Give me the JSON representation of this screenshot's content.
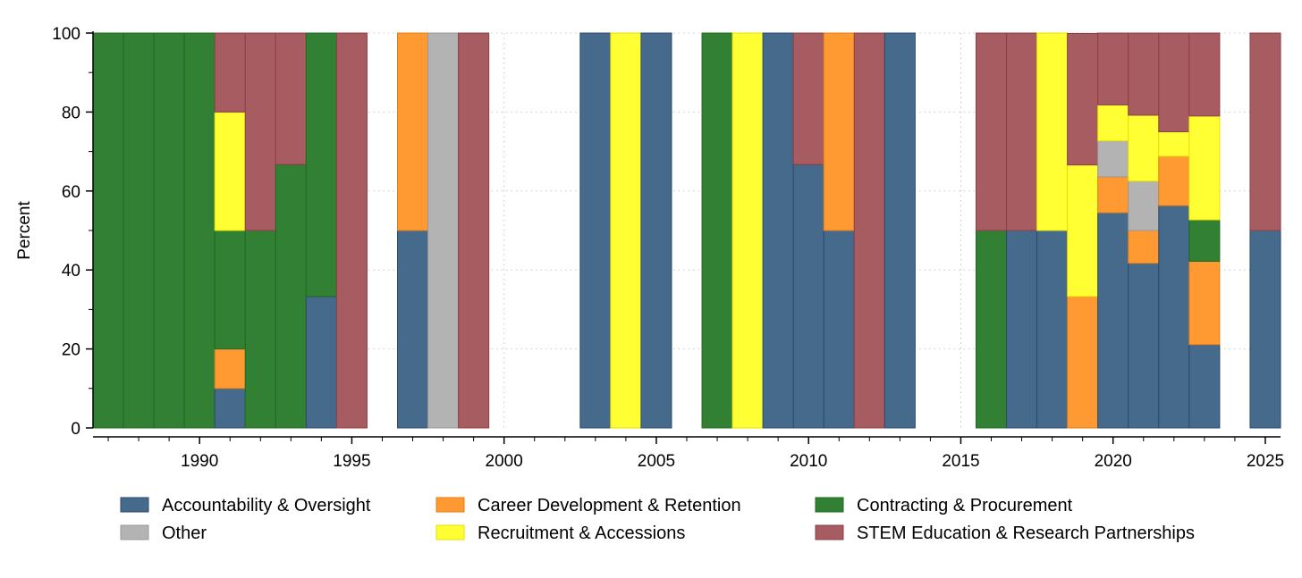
{
  "chart_data": {
    "type": "bar",
    "stacked": true,
    "title": "",
    "xlabel": "",
    "ylabel": "Percent",
    "xlim": [
      1986.5,
      2025.5
    ],
    "ylim": [
      0,
      100
    ],
    "x_ticks": [
      1990,
      1995,
      2000,
      2005,
      2010,
      2015,
      2020,
      2025
    ],
    "y_ticks": [
      0,
      20,
      40,
      60,
      80,
      100
    ],
    "grid": true,
    "legend_position": "bottom",
    "series": [
      {
        "name": "Accountability & Oversight",
        "color": "#466a8c",
        "stroke": "#2a4a6b"
      },
      {
        "name": "Career Development & Retention",
        "color": "#ff9a33",
        "stroke": "#e07f1a"
      },
      {
        "name": "Contracting & Procurement",
        "color": "#318034",
        "stroke": "#1f6a22"
      },
      {
        "name": "Other",
        "color": "#b3b3b3",
        "stroke": "#999999"
      },
      {
        "name": "Recruitment & Accessions",
        "color": "#ffff33",
        "stroke": "#e6e000"
      },
      {
        "name": "STEM Education & Research Partnerships",
        "color": "#a65c61",
        "stroke": "#8f3f45"
      }
    ],
    "stack_order": [
      "Accountability & Oversight",
      "Career Development & Retention",
      "Other",
      "Contracting & Procurement",
      "Recruitment & Accessions",
      "STEM Education & Research Partnerships"
    ],
    "bars": [
      {
        "year": 1987,
        "values": {
          "Contracting & Procurement": 100
        }
      },
      {
        "year": 1988,
        "values": {
          "Contracting & Procurement": 100
        }
      },
      {
        "year": 1989,
        "values": {
          "Contracting & Procurement": 100
        }
      },
      {
        "year": 1990,
        "values": {
          "Contracting & Procurement": 100
        }
      },
      {
        "year": 1991,
        "values": {
          "Accountability & Oversight": 10,
          "Career Development & Retention": 10,
          "Contracting & Procurement": 30,
          "Recruitment & Accessions": 30,
          "STEM Education & Research Partnerships": 20
        }
      },
      {
        "year": 1992,
        "values": {
          "Contracting & Procurement": 50,
          "STEM Education & Research Partnerships": 50
        }
      },
      {
        "year": 1993,
        "values": {
          "Contracting & Procurement": 66.7,
          "STEM Education & Research Partnerships": 33.3
        }
      },
      {
        "year": 1994,
        "values": {
          "Accountability & Oversight": 33.3,
          "Contracting & Procurement": 66.7
        }
      },
      {
        "year": 1995,
        "values": {
          "STEM Education & Research Partnerships": 100
        }
      },
      {
        "year": 1997,
        "values": {
          "Accountability & Oversight": 50,
          "Career Development & Retention": 50
        }
      },
      {
        "year": 1998,
        "values": {
          "Other": 100
        }
      },
      {
        "year": 1999,
        "values": {
          "STEM Education & Research Partnerships": 100
        }
      },
      {
        "year": 2003,
        "values": {
          "Accountability & Oversight": 100
        }
      },
      {
        "year": 2004,
        "values": {
          "Recruitment & Accessions": 100
        }
      },
      {
        "year": 2005,
        "values": {
          "Accountability & Oversight": 100
        }
      },
      {
        "year": 2007,
        "values": {
          "Contracting & Procurement": 100
        }
      },
      {
        "year": 2008,
        "values": {
          "Recruitment & Accessions": 100
        }
      },
      {
        "year": 2009,
        "values": {
          "Accountability & Oversight": 100
        }
      },
      {
        "year": 2010,
        "values": {
          "Accountability & Oversight": 66.7,
          "STEM Education & Research Partnerships": 33.3
        }
      },
      {
        "year": 2011,
        "values": {
          "Accountability & Oversight": 50,
          "Career Development & Retention": 50
        }
      },
      {
        "year": 2012,
        "values": {
          "STEM Education & Research Partnerships": 100
        }
      },
      {
        "year": 2013,
        "values": {
          "Accountability & Oversight": 100
        }
      },
      {
        "year": 2016,
        "values": {
          "Contracting & Procurement": 50,
          "STEM Education & Research Partnerships": 50
        }
      },
      {
        "year": 2017,
        "values": {
          "Accountability & Oversight": 50,
          "STEM Education & Research Partnerships": 50
        }
      },
      {
        "year": 2018,
        "values": {
          "Accountability & Oversight": 50,
          "Recruitment & Accessions": 50
        }
      },
      {
        "year": 2019,
        "values": {
          "Career Development & Retention": 33.3,
          "Recruitment & Accessions": 33.3,
          "STEM Education & Research Partnerships": 33.3
        }
      },
      {
        "year": 2020,
        "values": {
          "Accountability & Oversight": 54.5,
          "Career Development & Retention": 9.1,
          "Other": 9.1,
          "Recruitment & Accessions": 9.1,
          "STEM Education & Research Partnerships": 18.2
        }
      },
      {
        "year": 2021,
        "values": {
          "Accountability & Oversight": 41.7,
          "Career Development & Retention": 8.3,
          "Other": 12.5,
          "Recruitment & Accessions": 16.7,
          "STEM Education & Research Partnerships": 20.8
        }
      },
      {
        "year": 2022,
        "values": {
          "Accountability & Oversight": 56.3,
          "Career Development & Retention": 12.5,
          "Recruitment & Accessions": 6.2,
          "STEM Education & Research Partnerships": 25
        }
      },
      {
        "year": 2023,
        "values": {
          "Accountability & Oversight": 21.1,
          "Career Development & Retention": 21.1,
          "Contracting & Procurement": 10.5,
          "Recruitment & Accessions": 26.3,
          "STEM Education & Research Partnerships": 21
        }
      },
      {
        "year": 2025,
        "values": {
          "Accountability & Oversight": 50,
          "STEM Education & Research Partnerships": 50
        }
      }
    ]
  }
}
